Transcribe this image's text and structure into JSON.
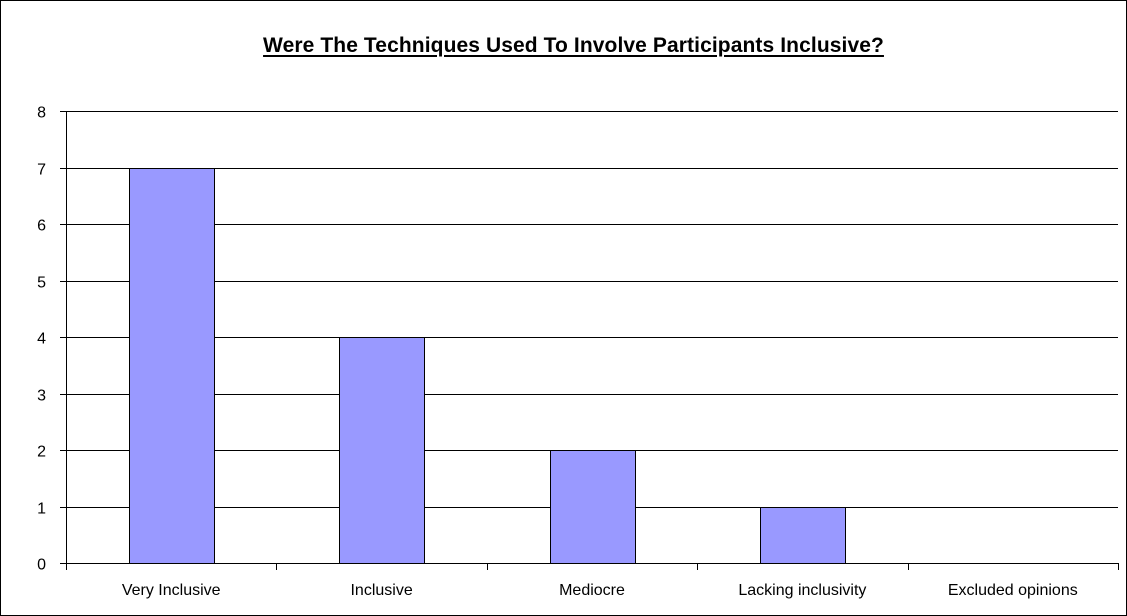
{
  "chart_data": {
    "type": "bar",
    "title": "Were The Techniques Used To Involve Participants Inclusive?",
    "xlabel": "",
    "ylabel": "",
    "categories": [
      "Very Inclusive",
      "Inclusive",
      "Mediocre",
      "Lacking inclusivity",
      "Excluded opinions"
    ],
    "values": [
      7,
      4,
      2,
      1,
      0
    ],
    "ylim": [
      0,
      8
    ],
    "yticks": [
      "0",
      "1",
      "2",
      "3",
      "4",
      "5",
      "6",
      "7",
      "8"
    ],
    "grid": true,
    "legend": "none",
    "colors": {
      "bar_fill": "#9999ff",
      "bar_stroke": "#000000",
      "gridline": "#000000",
      "background": "#ffffff"
    }
  }
}
